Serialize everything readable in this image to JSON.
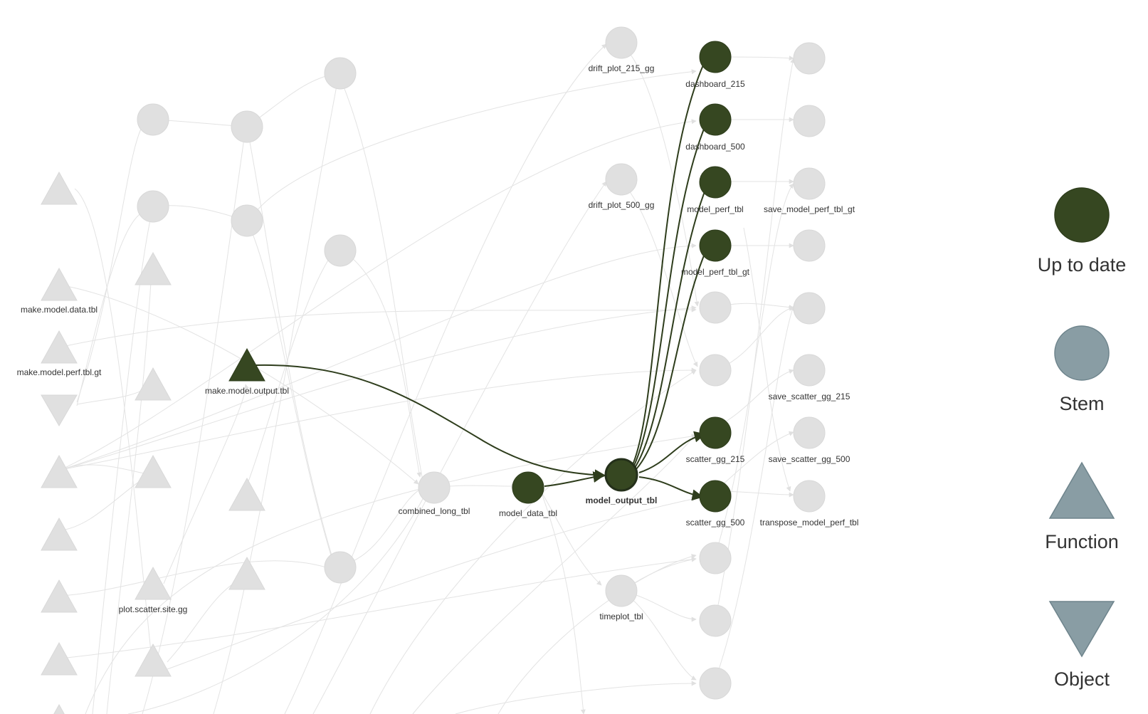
{
  "legend": [
    {
      "label": "Up to date",
      "shape": "dot",
      "color": "#364721",
      "icon": "up-to-date-dot-icon"
    },
    {
      "label": "Stem",
      "shape": "dot",
      "color": "#899DA4",
      "icon": "stem-dot-icon"
    },
    {
      "label": "Function",
      "shape": "triangle",
      "color": "#899DA4",
      "icon": "function-triangle-icon"
    },
    {
      "label": "Object",
      "shape": "triangleDown",
      "color": "#899DA4",
      "icon": "object-triangle-icon"
    }
  ],
  "colors": {
    "up_to_date": "#364721",
    "faded_node": "#e0e0e0",
    "faded_edge": "#e3e3e3",
    "highlight_edge": "#2e3d1c"
  },
  "nodes": {
    "make_model_output_tbl": {
      "label": "make.model.output.tbl",
      "type": "function",
      "status": "up_to_date"
    },
    "model_data_tbl": {
      "label": "model_data_tbl",
      "type": "stem",
      "status": "up_to_date"
    },
    "model_output_tbl": {
      "label": "model_output_tbl",
      "type": "stem",
      "status": "up_to_date",
      "selected": true
    },
    "dashboard_215": {
      "label": "dashboard_215",
      "type": "stem",
      "status": "up_to_date"
    },
    "dashboard_500": {
      "label": "dashboard_500",
      "type": "stem",
      "status": "up_to_date"
    },
    "model_perf_tbl": {
      "label": "model_perf_tbl",
      "type": "stem",
      "status": "up_to_date"
    },
    "model_perf_tbl_gt": {
      "label": "model_perf_tbl_gt",
      "type": "stem",
      "status": "up_to_date"
    },
    "scatter_gg_215": {
      "label": "scatter_gg_215",
      "type": "stem",
      "status": "up_to_date"
    },
    "scatter_gg_500": {
      "label": "scatter_gg_500",
      "type": "stem",
      "status": "up_to_date"
    },
    "make_model_data_tbl": {
      "label": "make.model.data.tbl",
      "type": "function",
      "status": "faded"
    },
    "make_model_perf_tbl_gt": {
      "label": "make.model.perf.tbl.gt",
      "type": "function",
      "status": "faded"
    },
    "plot_scatter_site_gg": {
      "label": "plot.scatter.site.gg",
      "type": "function",
      "status": "faded"
    },
    "combined_long_tbl": {
      "label": "combined_long_tbl",
      "type": "stem",
      "status": "faded"
    },
    "drift_plot_215_gg": {
      "label": "drift_plot_215_gg",
      "type": "stem",
      "status": "faded"
    },
    "drift_plot_500_gg": {
      "label": "drift_plot_500_gg",
      "type": "stem",
      "status": "faded"
    },
    "timeplot_tbl": {
      "label": "timeplot_tbl",
      "type": "stem",
      "status": "faded"
    },
    "save_model_perf_tbl_gt": {
      "label": "save_model_perf_tbl_gt",
      "type": "stem",
      "status": "faded"
    },
    "save_scatter_gg_215": {
      "label": "save_scatter_gg_215",
      "type": "stem",
      "status": "faded"
    },
    "save_scatter_gg_500": {
      "label": "save_scatter_gg_500",
      "type": "stem",
      "status": "faded"
    },
    "transpose_model_perf_tbl": {
      "label": "transpose_model_perf_tbl",
      "type": "stem",
      "status": "faded"
    }
  }
}
